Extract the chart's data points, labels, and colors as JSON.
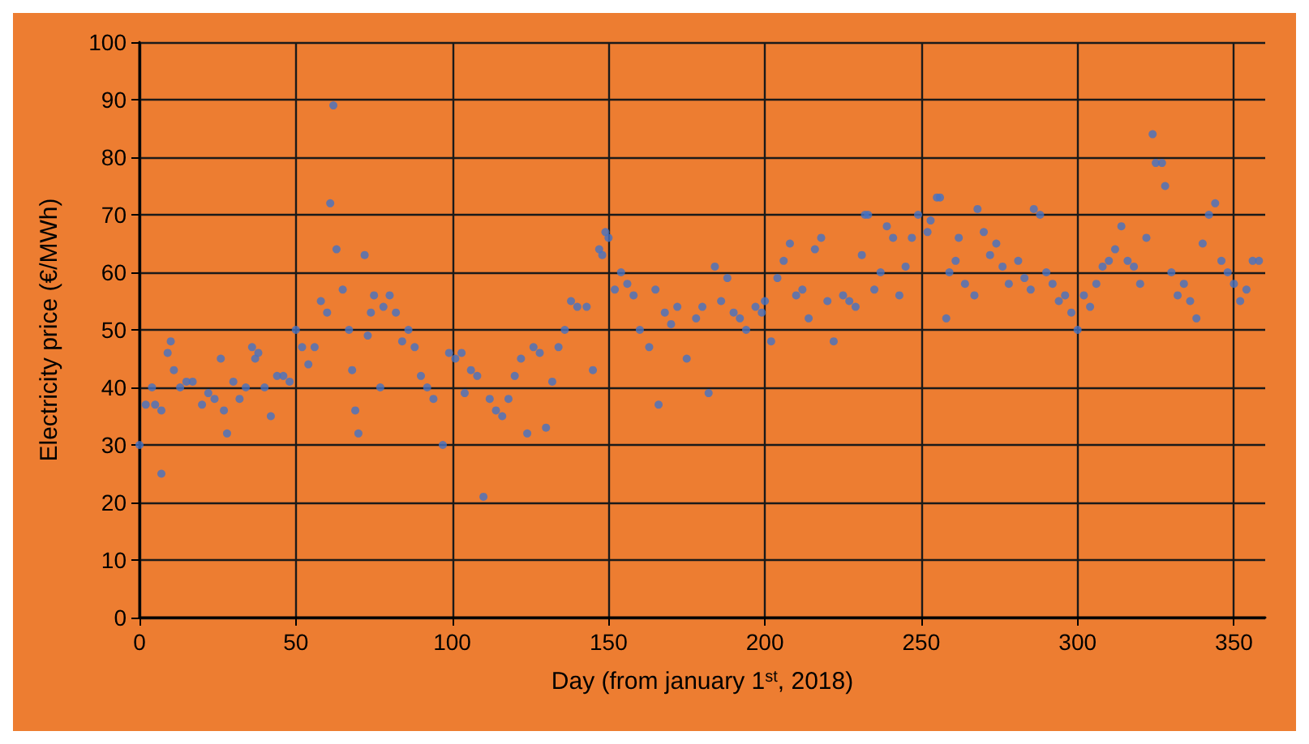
{
  "chart_data": {
    "type": "scatter",
    "xlabel": "Day (from january 1$^{st}$, 2018)",
    "ylabel": "Electricity price (€/MWh)",
    "xlim": [
      0,
      360
    ],
    "xticks": [
      0,
      50,
      100,
      150,
      200,
      250,
      300,
      350
    ],
    "ylim": [
      0,
      100
    ],
    "yticks": [
      0,
      10,
      20,
      30,
      40,
      50,
      60,
      70,
      80,
      90,
      100
    ],
    "grid": true,
    "marker": "circle",
    "series": [
      {
        "color": "#4472c4",
        "x": [
          0,
          2,
          4,
          5,
          7,
          7,
          9,
          10,
          11,
          13,
          15,
          17,
          20,
          22,
          24,
          26,
          27,
          28,
          30,
          32,
          34,
          36,
          37,
          38,
          40,
          42,
          44,
          46,
          48,
          50,
          52,
          54,
          56,
          58,
          60,
          61,
          62,
          63,
          65,
          67,
          68,
          69,
          70,
          72,
          73,
          74,
          75,
          77,
          78,
          80,
          82,
          84,
          86,
          88,
          90,
          92,
          94,
          97,
          99,
          101,
          103,
          104,
          106,
          108,
          110,
          112,
          114,
          116,
          118,
          120,
          122,
          124,
          126,
          128,
          130,
          132,
          134,
          136,
          138,
          140,
          143,
          145,
          147,
          148,
          149,
          150,
          152,
          154,
          156,
          158,
          160,
          163,
          165,
          166,
          168,
          170,
          172,
          175,
          178,
          180,
          182,
          184,
          186,
          188,
          190,
          192,
          194,
          197,
          199,
          200,
          202,
          204,
          206,
          208,
          210,
          212,
          214,
          216,
          218,
          220,
          222,
          225,
          227,
          229,
          231,
          232,
          233,
          235,
          237,
          239,
          241,
          243,
          245,
          247,
          249,
          252,
          253,
          255,
          256,
          258,
          259,
          261,
          262,
          264,
          267,
          268,
          270,
          272,
          274,
          276,
          278,
          281,
          283,
          285,
          286,
          288,
          290,
          292,
          294,
          296,
          298,
          300,
          302,
          304,
          306,
          308,
          310,
          312,
          314,
          316,
          318,
          320,
          322,
          324,
          325,
          327,
          328,
          330,
          332,
          334,
          336,
          338,
          340,
          342,
          344,
          346,
          348,
          350,
          352,
          354,
          356,
          358
        ],
        "values": [
          30,
          37,
          40,
          37,
          36,
          25,
          46,
          48,
          43,
          40,
          41,
          41,
          37,
          39,
          38,
          45,
          36,
          32,
          41,
          38,
          40,
          47,
          45,
          46,
          40,
          35,
          42,
          42,
          41,
          50,
          47,
          44,
          47,
          55,
          53,
          72,
          89,
          64,
          57,
          50,
          43,
          36,
          32,
          63,
          49,
          53,
          56,
          40,
          54,
          56,
          53,
          48,
          50,
          47,
          42,
          40,
          38,
          30,
          46,
          45,
          46,
          39,
          43,
          42,
          21,
          38,
          36,
          35,
          38,
          42,
          45,
          32,
          47,
          46,
          33,
          41,
          47,
          50,
          55,
          54,
          54,
          43,
          64,
          63,
          67,
          66,
          57,
          60,
          58,
          56,
          50,
          47,
          57,
          37,
          53,
          51,
          54,
          45,
          52,
          54,
          39,
          61,
          55,
          59,
          53,
          52,
          50,
          54,
          53,
          55,
          48,
          59,
          62,
          65,
          56,
          57,
          52,
          64,
          66,
          55,
          48,
          56,
          55,
          54,
          63,
          70,
          70,
          57,
          60,
          68,
          66,
          56,
          61,
          66,
          70,
          67,
          69,
          73,
          73,
          52,
          60,
          62,
          66,
          58,
          56,
          71,
          67,
          63,
          65,
          61,
          58,
          62,
          59,
          57,
          71,
          70,
          60,
          58,
          55,
          56,
          53,
          50,
          56,
          54,
          58,
          61,
          62,
          64,
          68,
          62,
          61,
          58,
          66,
          84,
          79,
          79,
          75,
          60,
          56,
          58,
          55,
          52,
          65,
          70,
          72,
          62,
          60,
          58,
          55,
          57,
          62,
          62
        ]
      }
    ]
  }
}
